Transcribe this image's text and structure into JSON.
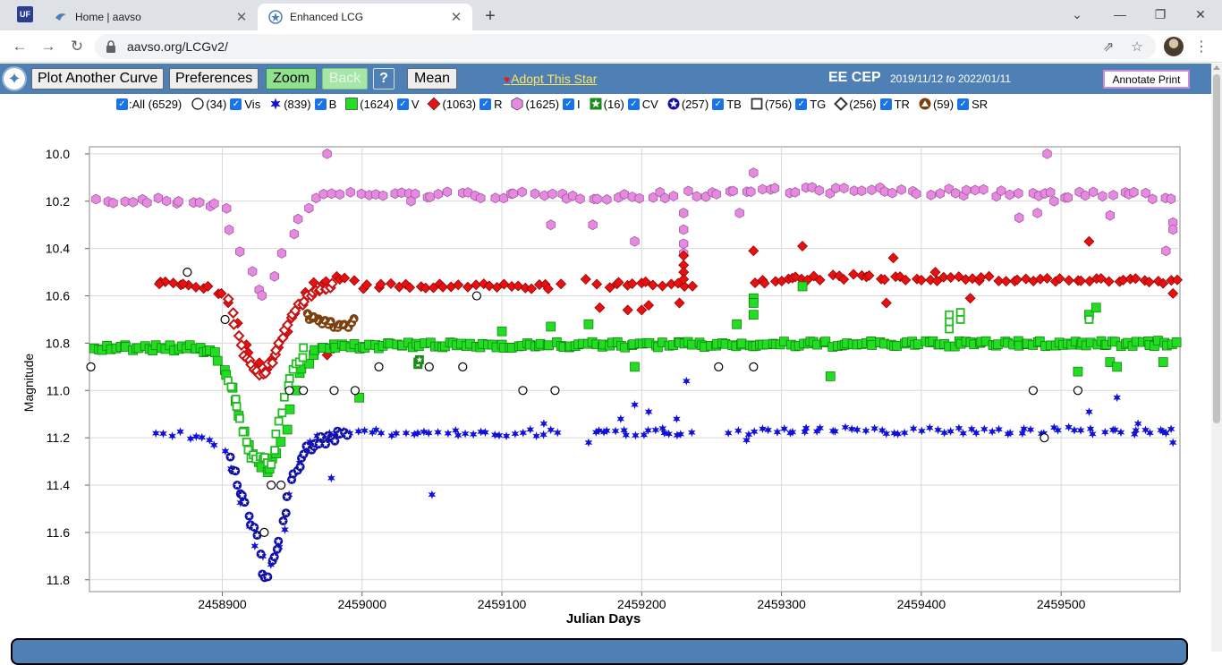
{
  "browser": {
    "tabs": [
      {
        "title": "Home | aavso",
        "active": false
      },
      {
        "title": "Enhanced LCG",
        "active": true
      }
    ],
    "app_icon_text": "UF",
    "url": "aavso.org/LCGv2/"
  },
  "toolbar": {
    "plot_another_label": "Plot Another Curve",
    "preferences_label": "Preferences",
    "zoom_label": "Zoom",
    "back_label": "Back",
    "help_label": "?",
    "mean_label": "Mean",
    "adopt_label": "Adopt This Star",
    "star_name": "EE CEP",
    "date_from": "2019/11/12",
    "date_to_word": "to",
    "date_to": "2022/01/11",
    "annotate_label": "Annotate Print"
  },
  "legend": [
    {
      "key": "all",
      "text": ":All (6529)",
      "marker": "none",
      "color": ""
    },
    {
      "key": "vis",
      "text": "(34)",
      "name": "Vis",
      "marker": "circle-open",
      "color": "#000000"
    },
    {
      "key": "b",
      "text": "(839)",
      "name": "B",
      "marker": "star",
      "color": "#1010d8"
    },
    {
      "key": "v",
      "text": "(1624)",
      "name": "V",
      "marker": "square",
      "color": "#22dd22"
    },
    {
      "key": "r",
      "text": "(1063)",
      "name": "R",
      "marker": "diamond",
      "color": "#e81010"
    },
    {
      "key": "i",
      "text": "(1625)",
      "name": "I",
      "marker": "hexagon",
      "color": "#e58ae0"
    },
    {
      "key": "cv",
      "text": "(16)",
      "name": "CV",
      "marker": "star-square",
      "color": "#1a8a1a"
    },
    {
      "key": "tb",
      "text": "(257)",
      "name": "TB",
      "marker": "star-circle",
      "color": "#1010a8"
    },
    {
      "key": "tg",
      "text": "(756)",
      "name": "TG",
      "marker": "square-open",
      "color": "#22bb22"
    },
    {
      "key": "tr",
      "text": "(256)",
      "name": "TR",
      "marker": "diamond-open",
      "color": "#c81010"
    },
    {
      "key": "sr",
      "text": "(59)",
      "name": "SR",
      "marker": "triangle-circle",
      "color": "#7a4010"
    }
  ],
  "chart_data": {
    "type": "scatter",
    "xlabel": "Julian Days",
    "ylabel": "Magnitude",
    "xlim": [
      2458805,
      2459585
    ],
    "ylim": [
      11.85,
      9.97
    ],
    "y_inverted": true,
    "xticks": [
      2458900,
      2459000,
      2459100,
      2459200,
      2459300,
      2459400,
      2459500
    ],
    "yticks": [
      10.0,
      10.2,
      10.4,
      10.6,
      10.8,
      11.0,
      11.2,
      11.4,
      11.6,
      11.8
    ],
    "grid": true,
    "eclipse_center_jd": 2458930,
    "series": [
      {
        "name": "I",
        "marker": "hexagon",
        "color": "#e58ae0",
        "stroke": "#9a4f96",
        "baseline": [
          [
            2458805,
            10.2
          ],
          [
            2458880,
            10.2
          ],
          [
            2458900,
            10.22
          ],
          [
            2458915,
            10.45
          ],
          [
            2458930,
            10.62
          ],
          [
            2458945,
            10.4
          ],
          [
            2458960,
            10.22
          ],
          [
            2458975,
            10.17
          ],
          [
            2459000,
            10.17
          ],
          [
            2459200,
            10.18
          ],
          [
            2459300,
            10.15
          ],
          [
            2459585,
            10.18
          ]
        ],
        "scatter": 0.015,
        "step": 6,
        "extra": [
          [
            2458975,
            10.0
          ],
          [
            2459490,
            10.0
          ],
          [
            2459280,
            10.08
          ],
          [
            2459195,
            10.37
          ],
          [
            2459135,
            10.3
          ],
          [
            2459165,
            10.3
          ],
          [
            2459270,
            10.25
          ],
          [
            2459580,
            10.29
          ],
          [
            2459580,
            10.32
          ],
          [
            2459575,
            10.41
          ],
          [
            2459230,
            10.25
          ],
          [
            2459230,
            10.32
          ],
          [
            2459230,
            10.38
          ],
          [
            2459230,
            10.42
          ],
          [
            2459470,
            10.27
          ],
          [
            2459483,
            10.25
          ],
          [
            2459495,
            10.2
          ],
          [
            2459535,
            10.26
          ],
          [
            2459035,
            10.2
          ]
        ]
      },
      {
        "name": "R",
        "marker": "diamond",
        "color": "#e81010",
        "stroke": "#8a0000",
        "baseline": [
          [
            2458855,
            10.54
          ],
          [
            2458890,
            10.56
          ],
          [
            2458905,
            10.62
          ],
          [
            2458915,
            10.8
          ],
          [
            2458928,
            10.92
          ],
          [
            2458940,
            10.82
          ],
          [
            2458950,
            10.68
          ],
          [
            2458965,
            10.55
          ],
          [
            2458985,
            10.52
          ],
          [
            2459000,
            10.56
          ],
          [
            2459140,
            10.56
          ],
          [
            2459220,
            10.55
          ],
          [
            2459300,
            10.54
          ],
          [
            2459340,
            10.52
          ],
          [
            2459585,
            10.54
          ]
        ],
        "scatter": 0.012,
        "step": 5,
        "gaps": [
          [
            2459142,
            2459168
          ],
          [
            2459240,
            2459275
          ]
        ],
        "extra": [
          [
            2458855,
            10.55
          ],
          [
            2458872,
            10.55
          ],
          [
            2459160,
            10.53
          ],
          [
            2459170,
            10.65
          ],
          [
            2459190,
            10.66
          ],
          [
            2459200,
            10.66
          ],
          [
            2459205,
            10.64
          ],
          [
            2459227,
            10.63
          ],
          [
            2459280,
            10.41
          ],
          [
            2459315,
            10.39
          ],
          [
            2459380,
            10.44
          ],
          [
            2459410,
            10.5
          ],
          [
            2459375,
            10.63
          ],
          [
            2459435,
            10.61
          ],
          [
            2459520,
            10.37
          ],
          [
            2459230,
            10.43
          ],
          [
            2459230,
            10.47
          ],
          [
            2459230,
            10.5
          ],
          [
            2459230,
            10.53
          ],
          [
            2459580,
            10.59
          ],
          [
            2459310,
            10.52
          ],
          [
            2458975,
            10.85
          ]
        ]
      },
      {
        "name": "V",
        "marker": "square",
        "color": "#22dd22",
        "stroke": "#0a7a0a",
        "baseline": [
          [
            2458805,
            10.82
          ],
          [
            2458880,
            10.82
          ],
          [
            2458895,
            10.84
          ],
          [
            2458905,
            10.95
          ],
          [
            2458920,
            11.25
          ],
          [
            2458932,
            11.35
          ],
          [
            2458945,
            11.2
          ],
          [
            2458955,
            10.92
          ],
          [
            2458970,
            10.82
          ],
          [
            2459000,
            10.81
          ],
          [
            2459585,
            10.8
          ]
        ],
        "scatter": 0.012,
        "step": 3,
        "extra": [
          [
            2458998,
            11.03
          ],
          [
            2459135,
            10.73
          ],
          [
            2459162,
            10.72
          ],
          [
            2459195,
            10.9
          ],
          [
            2459268,
            10.72
          ],
          [
            2459280,
            10.61
          ],
          [
            2459280,
            10.63
          ],
          [
            2459280,
            10.68
          ],
          [
            2459315,
            10.56
          ],
          [
            2459335,
            10.94
          ],
          [
            2459512,
            10.92
          ],
          [
            2459520,
            10.68
          ],
          [
            2459525,
            10.65
          ],
          [
            2459535,
            10.88
          ],
          [
            2459540,
            10.9
          ],
          [
            2459573,
            10.88
          ],
          [
            2459100,
            10.75
          ]
        ]
      },
      {
        "name": "B",
        "marker": "star",
        "color": "#1010d8",
        "stroke": "#1010d8",
        "baseline": [
          [
            2458855,
            11.18
          ],
          [
            2458890,
            11.2
          ],
          [
            2458900,
            11.25
          ],
          [
            2458912,
            11.42
          ],
          [
            2458925,
            11.65
          ],
          [
            2458935,
            11.75
          ],
          [
            2458945,
            11.6
          ],
          [
            2458955,
            11.3
          ],
          [
            2458970,
            11.18
          ],
          [
            2459000,
            11.18
          ],
          [
            2459140,
            11.18
          ],
          [
            2459300,
            11.17
          ],
          [
            2459585,
            11.17
          ]
        ],
        "scatter": 0.015,
        "step": 5,
        "gaps": [
          [
            2459142,
            2459160
          ],
          [
            2459240,
            2459268
          ]
        ],
        "extra": [
          [
            2458978,
            11.37
          ],
          [
            2459050,
            11.44
          ],
          [
            2459162,
            11.22
          ],
          [
            2459175,
            11.17
          ],
          [
            2459185,
            11.12
          ],
          [
            2459195,
            11.06
          ],
          [
            2459205,
            11.09
          ],
          [
            2459215,
            11.16
          ],
          [
            2459225,
            11.12
          ],
          [
            2459232,
            10.96
          ],
          [
            2459262,
            11.18
          ],
          [
            2459275,
            11.21
          ],
          [
            2459520,
            11.09
          ],
          [
            2459540,
            11.03
          ],
          [
            2459555,
            11.14
          ],
          [
            2459575,
            11.18
          ],
          [
            2459580,
            11.22
          ],
          [
            2459130,
            11.14
          ]
        ]
      },
      {
        "name": "TB",
        "marker": "star-circle",
        "color": "#1010a8",
        "stroke": "#1010a8",
        "baseline": [
          [
            2458905,
            11.3
          ],
          [
            2458915,
            11.45
          ],
          [
            2458925,
            11.62
          ],
          [
            2458930,
            11.82
          ],
          [
            2458940,
            11.65
          ],
          [
            2458950,
            11.35
          ],
          [
            2458965,
            11.22
          ],
          [
            2458990,
            11.18
          ]
        ],
        "scatter": 0.02,
        "step": 2
      },
      {
        "name": "TG",
        "marker": "square-open",
        "color": "#22bb22",
        "stroke": "#22bb22",
        "baseline": [
          [
            2458905,
            10.95
          ],
          [
            2458920,
            11.28
          ],
          [
            2458935,
            11.3
          ],
          [
            2458948,
            10.95
          ],
          [
            2458960,
            10.82
          ]
        ],
        "scatter": 0.015,
        "step": 2,
        "extra": [
          [
            2459420,
            10.68
          ],
          [
            2459420,
            10.71
          ],
          [
            2459420,
            10.74
          ],
          [
            2459428,
            10.67
          ],
          [
            2459428,
            10.7
          ],
          [
            2459520,
            10.7
          ]
        ]
      },
      {
        "name": "TR",
        "marker": "diamond-open",
        "color": "#c81010",
        "stroke": "#c81010",
        "baseline": [
          [
            2458905,
            10.62
          ],
          [
            2458915,
            10.85
          ],
          [
            2458928,
            10.95
          ],
          [
            2458940,
            10.82
          ],
          [
            2458950,
            10.68
          ],
          [
            2458965,
            10.58
          ],
          [
            2458980,
            10.55
          ]
        ],
        "scatter": 0.012,
        "step": 2
      },
      {
        "name": "SR",
        "marker": "triangle-circle",
        "color": "#7a4010",
        "stroke": "#7a4010",
        "baseline": [
          [
            2458960,
            10.68
          ],
          [
            2458975,
            10.72
          ],
          [
            2458990,
            10.73
          ],
          [
            2458995,
            10.7
          ]
        ],
        "scatter": 0.015,
        "step": 2
      },
      {
        "name": "Vis",
        "marker": "circle-open",
        "color": "#000000",
        "stroke": "#000000",
        "points": [
          [
            2458806,
            10.9
          ],
          [
            2458875,
            10.5
          ],
          [
            2458902,
            10.7
          ],
          [
            2458930,
            11.6
          ],
          [
            2458935,
            11.4
          ],
          [
            2458942,
            11.4
          ],
          [
            2458948,
            11.0
          ],
          [
            2458958,
            11.0
          ],
          [
            2458980,
            11.0
          ],
          [
            2458995,
            11.0
          ],
          [
            2459012,
            10.9
          ],
          [
            2459048,
            10.9
          ],
          [
            2459072,
            10.9
          ],
          [
            2459082,
            10.6
          ],
          [
            2459115,
            11.0
          ],
          [
            2459138,
            11.0
          ],
          [
            2459255,
            10.9
          ],
          [
            2459280,
            10.9
          ],
          [
            2459480,
            11.0
          ],
          [
            2459488,
            11.2
          ],
          [
            2459512,
            11.0
          ]
        ]
      },
      {
        "name": "CV",
        "marker": "star-square",
        "color": "#1a8a1a",
        "stroke": "#1a8a1a",
        "points": [
          [
            2459040,
            10.88
          ],
          [
            2459040,
            10.89
          ],
          [
            2459041,
            10.87
          ]
        ]
      }
    ]
  }
}
